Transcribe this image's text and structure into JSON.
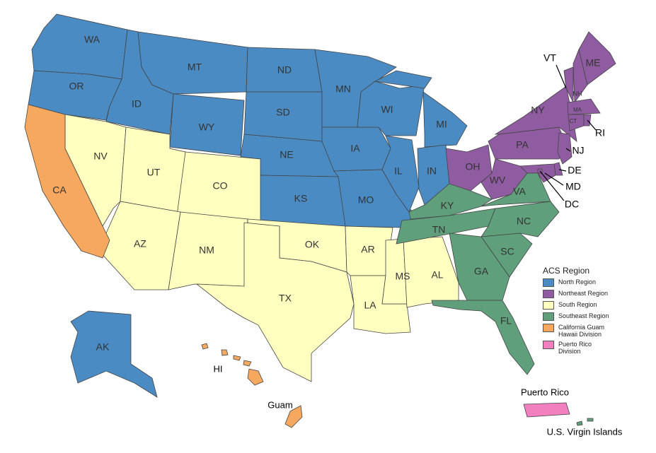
{
  "legend": {
    "title": "ACS Region"
  },
  "regions": [
    {
      "label": "North Region",
      "color": "#4b8bc3",
      "states": [
        "WA",
        "OR",
        "ID",
        "MT",
        "WY",
        "ND",
        "SD",
        "NE",
        "KS",
        "MN",
        "IA",
        "MO",
        "WI",
        "IL",
        "MI",
        "IN",
        "AK"
      ]
    },
    {
      "label": "Northeast Region",
      "color": "#8f5ca2",
      "states": [
        "OH",
        "WV",
        "PA",
        "NY",
        "VT",
        "NH",
        "ME",
        "MA",
        "CT",
        "RI",
        "NJ",
        "DE",
        "MD",
        "DC"
      ]
    },
    {
      "label": "South Region",
      "color": "#ffffbf",
      "states": [
        "NV",
        "UT",
        "CO",
        "AZ",
        "NM",
        "OK",
        "TX",
        "AR",
        "LA",
        "MS",
        "AL"
      ]
    },
    {
      "label": "Southeast Region",
      "color": "#5f9f7b",
      "states": [
        "KY",
        "VA",
        "TN",
        "NC",
        "SC",
        "GA",
        "FL",
        "U.S. Virgin Islands"
      ]
    },
    {
      "label": "California Guam Hawaii Division",
      "color": "#f6a85e",
      "states": [
        "CA",
        "HI",
        "Guam"
      ]
    },
    {
      "label": "Puerto Rico Division",
      "color": "#f27fbf",
      "states": [
        "Puerto Rico"
      ]
    }
  ]
}
